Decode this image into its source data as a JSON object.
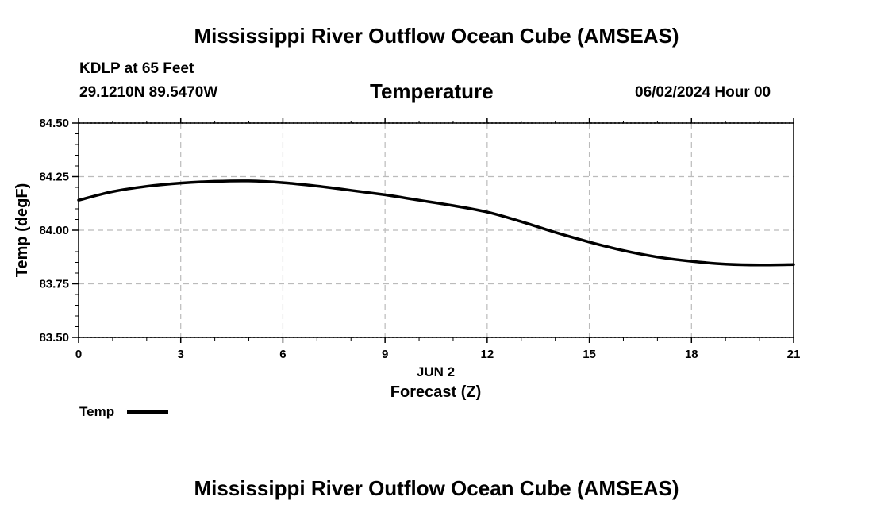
{
  "header": {
    "title_top": "Mississippi River Outflow Ocean Cube (AMSEAS)",
    "station": "KDLP at 65 Feet",
    "coords": "29.1210N  89.5470W",
    "variable": "Temperature",
    "datetime": "06/02/2024 Hour 00"
  },
  "footer": {
    "title_bottom": "Mississippi River Outflow Ocean Cube (AMSEAS)"
  },
  "chart_data": {
    "type": "line",
    "title": "Temperature",
    "ylabel": "Temp (degF)",
    "xlabel": "Forecast (Z)",
    "date_label": "JUN 2",
    "xlim": [
      0,
      21
    ],
    "ylim": [
      83.5,
      84.5
    ],
    "x_ticks": [
      0,
      3,
      6,
      9,
      12,
      15,
      18,
      21
    ],
    "x_tick_labels": [
      "0",
      "3",
      "6",
      "9",
      "12",
      "15",
      "18",
      "21"
    ],
    "y_ticks": [
      83.5,
      83.75,
      84.0,
      84.25,
      84.5
    ],
    "y_tick_labels": [
      "83.50",
      "83.75",
      "84.00",
      "84.25",
      "84.50"
    ],
    "grid": true,
    "legend_position": "bottom-left",
    "series": [
      {
        "name": "Temp",
        "color": "#000000",
        "x": [
          0,
          1,
          2,
          3,
          4,
          5,
          6,
          7,
          8,
          9,
          10,
          11,
          12,
          13,
          14,
          15,
          16,
          17,
          18,
          19,
          20,
          21
        ],
        "y": [
          84.14,
          84.18,
          84.205,
          84.22,
          84.228,
          84.23,
          84.222,
          84.206,
          84.186,
          84.165,
          84.14,
          84.115,
          84.085,
          84.04,
          83.99,
          83.945,
          83.905,
          83.875,
          83.855,
          83.842,
          83.838,
          83.84
        ]
      }
    ]
  }
}
